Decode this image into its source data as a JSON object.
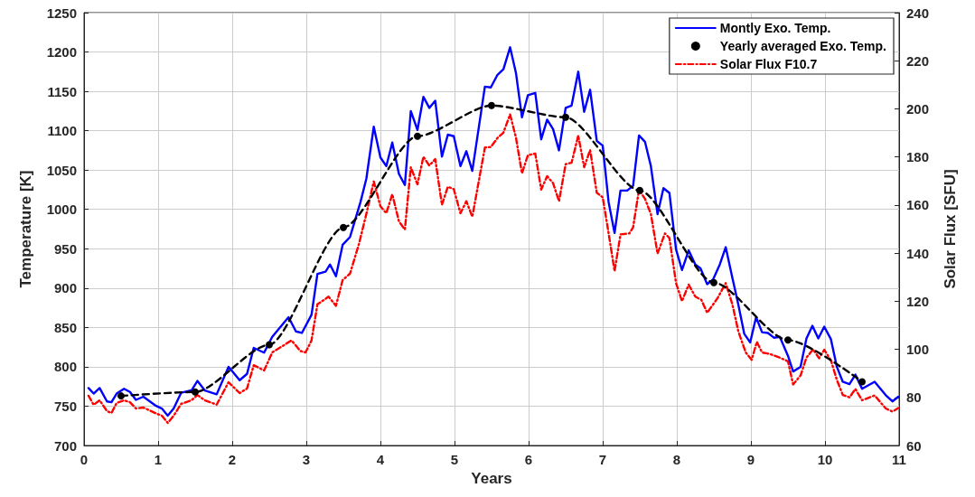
{
  "chart_data": {
    "type": "line",
    "xlabel": "Years",
    "ylabel": "Temperature [K]",
    "y2label": "Solar Flux [SFU]",
    "xlim": [
      0,
      11
    ],
    "xticks": [
      0,
      1,
      2,
      3,
      4,
      5,
      6,
      7,
      8,
      9,
      10,
      11
    ],
    "ylim": [
      700,
      1250
    ],
    "yticks": [
      700,
      750,
      800,
      850,
      900,
      950,
      1000,
      1050,
      1100,
      1150,
      1200,
      1250
    ],
    "y2lim": [
      60,
      240
    ],
    "y2ticks": [
      60,
      80,
      100,
      120,
      140,
      160,
      180,
      200,
      220,
      240
    ],
    "grid": true,
    "legend": "top right",
    "series": [
      {
        "name": "Montly Exo. Temp.",
        "color": "#0000ff",
        "line_style": "solid",
        "marker": "none",
        "x": [
          0.06,
          0.13,
          0.21,
          0.31,
          0.37,
          0.44,
          0.54,
          0.62,
          0.7,
          0.8,
          0.96,
          1.05,
          1.13,
          1.21,
          1.31,
          1.45,
          1.53,
          1.63,
          1.79,
          1.95,
          2.1,
          2.2,
          2.29,
          2.43,
          2.54,
          2.76,
          2.86,
          2.94,
          3.07,
          3.15,
          3.26,
          3.32,
          3.4,
          3.49,
          3.59,
          3.73,
          3.81,
          3.91,
          4.0,
          4.08,
          4.16,
          4.25,
          4.33,
          4.41,
          4.5,
          4.58,
          4.66,
          4.74,
          4.83,
          4.91,
          4.99,
          5.08,
          5.16,
          5.24,
          5.41,
          5.49,
          5.58,
          5.66,
          5.75,
          5.83,
          5.91,
          5.99,
          6.09,
          6.17,
          6.25,
          6.33,
          6.41,
          6.5,
          6.58,
          6.67,
          6.75,
          6.83,
          6.92,
          7.0,
          7.08,
          7.16,
          7.24,
          7.33,
          7.41,
          7.49,
          7.57,
          7.65,
          7.74,
          7.82,
          7.9,
          7.99,
          8.07,
          8.16,
          8.25,
          8.32,
          8.41,
          8.49,
          8.58,
          8.66,
          8.75,
          8.83,
          8.91,
          8.99,
          9.07,
          9.15,
          9.23,
          9.31,
          9.39,
          9.5,
          9.57,
          9.67,
          9.75,
          9.83,
          9.91,
          9.99,
          10.08,
          10.16,
          10.24,
          10.33,
          10.41,
          10.5,
          10.67,
          10.82,
          10.91,
          10.99
        ],
        "values": [
          773,
          766,
          773,
          756,
          755,
          766,
          772,
          768,
          758,
          762,
          751,
          747,
          738,
          747,
          767,
          770,
          782,
          770,
          765,
          800,
          783,
          791,
          824,
          818,
          838,
          863,
          845,
          843,
          866,
          918,
          921,
          930,
          915,
          955,
          965,
          1009,
          1039,
          1105,
          1066,
          1055,
          1085,
          1045,
          1031,
          1125,
          1101,
          1143,
          1129,
          1138,
          1067,
          1095,
          1093,
          1055,
          1074,
          1049,
          1156,
          1155,
          1171,
          1178,
          1206,
          1173,
          1117,
          1145,
          1148,
          1089,
          1114,
          1102,
          1075,
          1129,
          1132,
          1175,
          1124,
          1152,
          1087,
          1081,
          1009,
          970,
          1024,
          1024,
          1030,
          1094,
          1086,
          1055,
          994,
          1027,
          1021,
          949,
          923,
          948,
          930,
          925,
          905,
          911,
          930,
          952,
          913,
          879,
          842,
          831,
          863,
          844,
          843,
          837,
          838,
          814,
          794,
          800,
          836,
          852,
          836,
          851,
          835,
          800,
          781,
          778,
          790,
          772,
          781,
          764,
          756,
          762
        ]
      },
      {
        "name": "Yearly averaged Exo. Temp.",
        "color": "#000000",
        "line_style": "dashed",
        "marker": "circle",
        "x": [
          0.5,
          1.5,
          2.5,
          3.5,
          4.5,
          5.5,
          6.5,
          7.5,
          8.5,
          9.5,
          10.5
        ],
        "values": [
          763,
          768,
          828,
          977,
          1093,
          1132,
          1117,
          1024,
          907,
          834,
          781
        ]
      },
      {
        "name": "Solar Flux F10.7",
        "color": "#ff0000",
        "line_style": "dotted",
        "marker": "none",
        "axis": "y2",
        "x": [
          0.06,
          0.13,
          0.21,
          0.31,
          0.37,
          0.44,
          0.54,
          0.62,
          0.7,
          0.8,
          0.96,
          1.05,
          1.13,
          1.21,
          1.31,
          1.45,
          1.53,
          1.63,
          1.79,
          1.95,
          2.1,
          2.2,
          2.29,
          2.43,
          2.54,
          2.8,
          2.92,
          2.99,
          3.07,
          3.15,
          3.3,
          3.4,
          3.49,
          3.59,
          3.71,
          3.81,
          3.91,
          4.0,
          4.08,
          4.16,
          4.25,
          4.33,
          4.41,
          4.5,
          4.58,
          4.66,
          4.74,
          4.83,
          4.91,
          4.99,
          5.08,
          5.16,
          5.24,
          5.41,
          5.49,
          5.58,
          5.66,
          5.75,
          5.83,
          5.91,
          5.99,
          6.09,
          6.17,
          6.25,
          6.33,
          6.41,
          6.5,
          6.58,
          6.67,
          6.75,
          6.83,
          6.92,
          7.0,
          7.08,
          7.16,
          7.24,
          7.36,
          7.41,
          7.49,
          7.57,
          7.65,
          7.74,
          7.84,
          7.9,
          7.99,
          8.07,
          8.16,
          8.25,
          8.33,
          8.41,
          8.55,
          8.66,
          8.75,
          8.83,
          8.93,
          9.01,
          9.08,
          9.15,
          9.25,
          9.37,
          9.5,
          9.57,
          9.67,
          9.75,
          9.84,
          9.92,
          9.99,
          10.08,
          10.16,
          10.24,
          10.33,
          10.41,
          10.5,
          10.67,
          10.82,
          10.91,
          10.99
        ],
        "values": [
          80.7,
          76.9,
          78.8,
          74.3,
          73.5,
          77.7,
          78.8,
          78,
          75.4,
          75.8,
          73.5,
          72.4,
          69.4,
          72.4,
          77.3,
          78.8,
          81,
          78.8,
          77,
          86.3,
          81.8,
          83.7,
          93.4,
          91.2,
          98.7,
          103.7,
          99.3,
          98.7,
          103.7,
          118.7,
          121.9,
          118.1,
          128.8,
          131.5,
          143.8,
          156.3,
          169.8,
          159.5,
          156.6,
          164.5,
          153.2,
          149.8,
          175.7,
          168.6,
          180.1,
          176.4,
          179.1,
          160.1,
          167.6,
          166.6,
          156.6,
          161.6,
          155.1,
          183.9,
          184.1,
          187.9,
          190.1,
          197.7,
          187.9,
          173.2,
          180.7,
          181.4,
          166.4,
          172,
          169.1,
          161.6,
          177,
          177.6,
          188.9,
          175.7,
          182.9,
          165.1,
          163.2,
          148.2,
          132.5,
          147.8,
          148.2,
          150.7,
          166.4,
          162.6,
          156.3,
          139.8,
          148.2,
          146.3,
          127.5,
          120,
          126.9,
          121.9,
          120.6,
          115.2,
          121.3,
          127.5,
          118.7,
          107.5,
          98.7,
          95.6,
          103.1,
          98.7,
          98.1,
          96.8,
          95,
          85.4,
          89.1,
          96.6,
          100,
          96.3,
          99.8,
          95.4,
          87.3,
          81,
          80,
          83.5,
          78.8,
          80.8,
          75.4,
          74.1,
          75.6
        ]
      }
    ]
  }
}
